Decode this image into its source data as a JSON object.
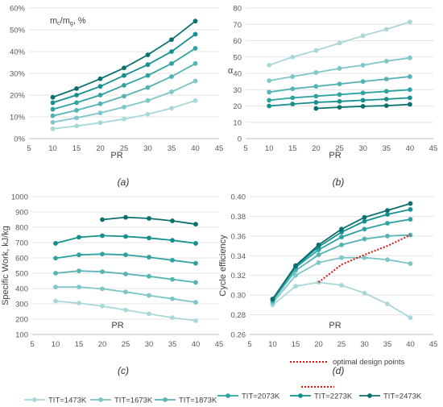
{
  "colors": [
    "#a8d8d8",
    "#7fc6c6",
    "#55b3b3",
    "#2fa2a2",
    "#168f8f",
    "#0b6f6f"
  ],
  "legend": [
    "TIT=1473K",
    "TIT=1673K",
    "TIT=1873K",
    "TIT=2073K",
    "TIT=2273K",
    "TIT=2473K"
  ],
  "chart_data": [
    {
      "type": "line",
      "caption": "(a)",
      "inner_label": "m_c/m_g, %",
      "xlabel": "PR",
      "ylabel": "",
      "xlim": [
        5,
        45
      ],
      "xticks": [
        5,
        10,
        15,
        20,
        25,
        30,
        35,
        40,
        45
      ],
      "ylim": [
        0,
        60
      ],
      "yticks": [
        0,
        10,
        20,
        30,
        40,
        50,
        60
      ],
      "ytick_labels": [
        "0%",
        "10%",
        "20%",
        "30%",
        "40%",
        "50%",
        "60%"
      ],
      "grid": "horizontal",
      "x": [
        10,
        15,
        20,
        25,
        30,
        35,
        40
      ],
      "series": [
        {
          "name": "TIT=1473K",
          "values": [
            4.5,
            5.8,
            7.3,
            9.0,
            11.2,
            14.0,
            17.5
          ]
        },
        {
          "name": "TIT=1673K",
          "values": [
            7.5,
            9.5,
            11.8,
            14.5,
            17.5,
            21.5,
            26.5
          ]
        },
        {
          "name": "TIT=1873K",
          "values": [
            10.5,
            13.0,
            16.0,
            19.5,
            23.5,
            28.5,
            34.5
          ]
        },
        {
          "name": "TIT=2073K",
          "values": [
            13.5,
            16.5,
            20.0,
            24.5,
            29.0,
            34.5,
            41.5
          ]
        },
        {
          "name": "TIT=2273K",
          "values": [
            16.5,
            20.0,
            24.0,
            29.0,
            34.0,
            40.0,
            48.0
          ]
        },
        {
          "name": "TIT=2473K",
          "values": [
            19.0,
            23.0,
            27.5,
            32.5,
            38.5,
            45.5,
            54.0
          ]
        }
      ]
    },
    {
      "type": "line",
      "caption": "(b)",
      "xlabel": "PR",
      "ylabel": "α",
      "xlim": [
        5,
        45
      ],
      "xticks": [
        5,
        10,
        15,
        20,
        25,
        30,
        35,
        40,
        45
      ],
      "ylim": [
        0,
        80
      ],
      "yticks": [
        0,
        10,
        20,
        30,
        40,
        50,
        60,
        70,
        80
      ],
      "ytick_labels": [
        "0",
        "10",
        "20",
        "30",
        "40",
        "50",
        "60",
        "70",
        "80"
      ],
      "grid": "horizontal",
      "x": [
        10,
        15,
        20,
        25,
        30,
        35,
        40
      ],
      "series": [
        {
          "name": "TIT=1473K",
          "values": [
            45,
            50,
            54,
            58.5,
            63,
            67,
            71.5
          ]
        },
        {
          "name": "TIT=1673K",
          "values": [
            35.5,
            38,
            40.5,
            43,
            45,
            47.5,
            49.5
          ]
        },
        {
          "name": "TIT=1873K",
          "values": [
            28.5,
            30.5,
            32,
            33.5,
            35,
            36.5,
            38
          ]
        },
        {
          "name": "TIT=2073K",
          "values": [
            23.5,
            25,
            26,
            27,
            28,
            29,
            30
          ]
        },
        {
          "name": "TIT=2273K",
          "values": [
            20,
            21.2,
            22.2,
            22.8,
            23.5,
            24.2,
            25
          ]
        },
        {
          "name": "TIT=2473K",
          "x": [
            20,
            25,
            30,
            35,
            40
          ],
          "values": [
            18.5,
            19.2,
            19.8,
            20.2,
            21
          ]
        }
      ]
    },
    {
      "type": "line",
      "caption": "(c)",
      "xlabel": "PR",
      "ylabel": "Specific Work, kJ/kg",
      "xlim": [
        5,
        45
      ],
      "xticks": [
        5,
        10,
        15,
        20,
        25,
        30,
        35,
        40,
        45
      ],
      "ylim": [
        100,
        1000
      ],
      "yticks": [
        100,
        200,
        300,
        400,
        500,
        600,
        700,
        800,
        900,
        1000
      ],
      "ytick_labels": [
        "100",
        "200",
        "300",
        "400",
        "500",
        "600",
        "700",
        "800",
        "900",
        "1000"
      ],
      "grid": "horizontal",
      "x": [
        10,
        15,
        20,
        25,
        30,
        35,
        40
      ],
      "series": [
        {
          "name": "TIT=1473K",
          "values": [
            318,
            305,
            285,
            260,
            235,
            210,
            190
          ]
        },
        {
          "name": "TIT=1673K",
          "values": [
            410,
            410,
            398,
            378,
            355,
            333,
            310
          ]
        },
        {
          "name": "TIT=1873K",
          "values": [
            500,
            515,
            510,
            495,
            480,
            460,
            440
          ]
        },
        {
          "name": "TIT=2073K",
          "values": [
            598,
            620,
            625,
            620,
            605,
            585,
            565
          ]
        },
        {
          "name": "TIT=2273K",
          "values": [
            695,
            735,
            745,
            740,
            730,
            715,
            695
          ]
        },
        {
          "name": "TIT=2473K",
          "x": [
            20,
            25,
            30,
            35,
            40
          ],
          "values": [
            850,
            865,
            858,
            842,
            820
          ]
        }
      ]
    },
    {
      "type": "line",
      "caption": "(d)",
      "xlabel": "PR",
      "ylabel": "Cycle efficiency",
      "xlim": [
        5,
        45
      ],
      "xticks": [
        5,
        10,
        15,
        20,
        25,
        30,
        35,
        40,
        45
      ],
      "ylim": [
        0.26,
        0.4
      ],
      "yticks": [
        0.26,
        0.28,
        0.3,
        0.32,
        0.34,
        0.36,
        0.38,
        0.4
      ],
      "ytick_labels": [
        "0.26",
        "0.28",
        "0.30",
        "0.32",
        "0.34",
        "0.36",
        "0.38",
        "0.40"
      ],
      "grid": "horizontal",
      "x": [
        10,
        15,
        20,
        25,
        30,
        35,
        40
      ],
      "series": [
        {
          "name": "TIT=1473K",
          "values": [
            0.29,
            0.309,
            0.313,
            0.31,
            0.302,
            0.291,
            0.277
          ]
        },
        {
          "name": "TIT=1673K",
          "values": [
            0.292,
            0.32,
            0.333,
            0.338,
            0.338,
            0.336,
            0.332
          ]
        },
        {
          "name": "TIT=1873K",
          "values": [
            0.294,
            0.325,
            0.341,
            0.351,
            0.357,
            0.36,
            0.361
          ]
        },
        {
          "name": "TIT=2073K",
          "values": [
            0.295,
            0.328,
            0.346,
            0.359,
            0.367,
            0.373,
            0.377
          ]
        },
        {
          "name": "TIT=2273K",
          "values": [
            0.296,
            0.329,
            0.349,
            0.364,
            0.375,
            0.382,
            0.387
          ]
        },
        {
          "name": "TIT=2473K",
          "values": [
            0.296,
            0.33,
            0.351,
            0.367,
            0.379,
            0.386,
            0.393
          ]
        }
      ],
      "optimal": {
        "label": "optimal design points",
        "color": "#dd1111",
        "x": [
          20,
          25,
          30,
          35,
          40
        ],
        "values": [
          0.313,
          0.331,
          0.341,
          0.35,
          0.361
        ]
      }
    }
  ]
}
